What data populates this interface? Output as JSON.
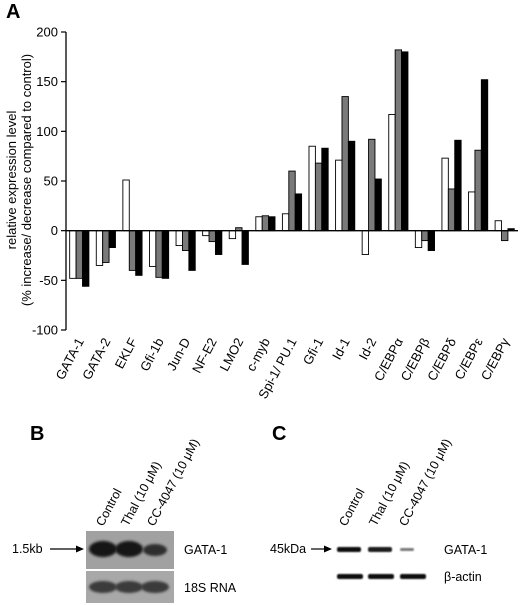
{
  "chart_data": {
    "type": "bar",
    "panel_label": "A",
    "ylabel_line1": "relative expression level",
    "ylabel_line2": "(% increase/ decrease compared to control)",
    "ylim": [
      -100,
      200
    ],
    "yticks": [
      -100,
      -50,
      0,
      50,
      100,
      150,
      200
    ],
    "categories": [
      "GATA-1",
      "GATA-2",
      "EKLF",
      "Gfi-1b",
      "Jun-D",
      "NF-E2",
      "LMO2",
      "c-myb",
      "Spi-1/ PU.1",
      "Gfi-1",
      "Id-1",
      "Id-2",
      "C/EBPα",
      "C/EBPβ",
      "C/EBPδ",
      "C/EBPε",
      "C/EBPγ"
    ],
    "series_colors": [
      "#ffffff",
      "#7a7a7a",
      "#000000"
    ],
    "series": [
      {
        "values": [
          -48,
          -35,
          51,
          -36,
          -15,
          -5,
          -8,
          14,
          17,
          85,
          71,
          -24,
          117,
          -17,
          73,
          39,
          10
        ]
      },
      {
        "values": [
          -48,
          -32,
          -40,
          -47,
          -20,
          -11,
          3,
          15,
          60,
          68,
          135,
          92,
          182,
          -10,
          42,
          81,
          -10
        ]
      },
      {
        "values": [
          -56,
          -17,
          -45,
          -48,
          -40,
          -24,
          -34,
          14,
          37,
          83,
          90,
          52,
          180,
          -20,
          91,
          152,
          2
        ]
      }
    ],
    "grid": false
  },
  "blot_b": {
    "panel_label": "B",
    "lanes": [
      "Control",
      "Thal (10 μM)",
      "CC-4047 (10 μM)"
    ],
    "size_marker": "1.5kb",
    "band_labels": [
      "GATA-1",
      "18S RNA"
    ]
  },
  "blot_c": {
    "panel_label": "C",
    "lanes": [
      "Control",
      "Thal (10 μM)",
      "CC-4047 (10 μM)"
    ],
    "size_marker": "45kDa",
    "band_labels": [
      "GATA-1",
      "β-actin"
    ]
  }
}
